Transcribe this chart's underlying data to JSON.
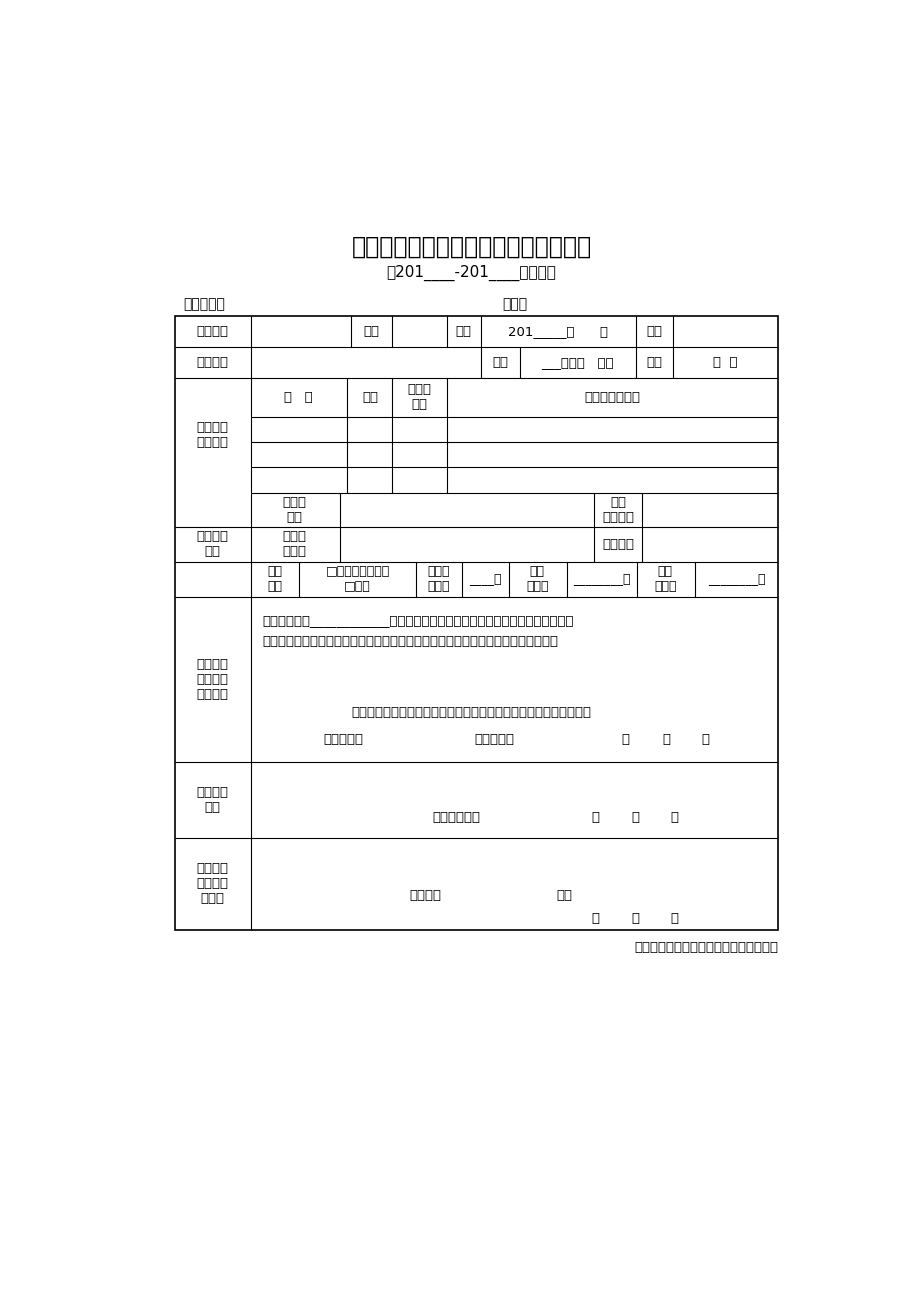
{
  "title": "深圳市中等职业学校国家助学金申请表",
  "subtitle": "（201____-201____学年度）",
  "school_label": "学校名称：",
  "seq_label": "序号：",
  "bg_color": "#ffffff",
  "text_color": "#000000",
  "footer_text": "深圳市教育局学生资助管理中心统一制作",
  "row1_cells": [
    "学生姓名",
    "性别",
    "入学",
    "201____年      月",
    "民族"
  ],
  "row2_cells": [
    "身份证号",
    "班别",
    "____年级（    ）班",
    "出生",
    "年  月"
  ],
  "family_header": [
    "姓   名",
    "年龄",
    "与本人\n关系",
    "工作或学习单位"
  ],
  "status_row7": [
    "现家庭\n住址",
    "主要\n收入来源"
  ],
  "status_row8": [
    "户籍详\n细地址",
    "联系电话"
  ],
  "status_row9": [
    "户籍\n性质",
    "□农村（含县镇）\n□城市",
    "家庭人\n口总数",
    "____人",
    "家庭\n年收入",
    "________元",
    "人均\n年收入",
    "________元"
  ],
  "reason_line1": "第一类：我是____________（选填紧缺或涉农）专业学生，现申请国家助学金。",
  "reason_line2": "第二类：我是非涉农非紧缺专业家庭经济困难学生，现申请国家助学金，理由如下：",
  "pledge": "本人承诺以上信息及所提交材料属实，并对其真实性承担一切责任。",
  "stu_sign": "学生签名：",
  "parent_sign": "家长签名：",
  "teacher_sign": "班主任签名：",
  "principal_label": "负责人：",
  "seal_label": "公章",
  "left_label_family_member": "家庭主要\n成员情况",
  "left_label_family_status": "家庭主要\n状况",
  "left_label_reason": "申请国家\n助学金的\n主要理由",
  "left_label_class": "班级审核\n意见",
  "left_label_school": "学校审核\n意见及公\n示结果"
}
